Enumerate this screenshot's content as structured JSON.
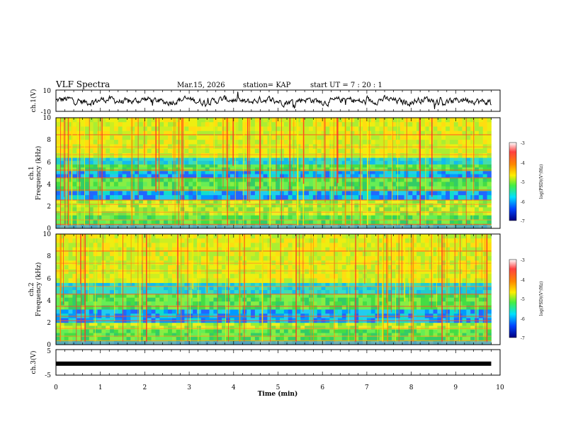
{
  "header": {
    "title": "VLF Spectra",
    "date": "Mar.15, 2026",
    "station": "station= KAP",
    "start": "start UT =  7 : 20 : 1"
  },
  "chart_data": [
    {
      "type": "line",
      "name": "ch1-waveform",
      "ylabel": "ch.1(V)",
      "ylim": [
        -10,
        10
      ],
      "ytick_labels": [
        "10",
        "-10"
      ],
      "xlim": [
        0,
        10
      ],
      "grid": false,
      "note": "noisy voltage trace oscillating roughly between -4 and +4 V over 0-9.8 min"
    },
    {
      "type": "heatmap",
      "name": "ch1-spectrogram",
      "ylabel_line1": "ch.1",
      "ylabel_line2": "Frequency (kHz)",
      "ylim": [
        0,
        10
      ],
      "ytick_labels": [
        "0",
        "2",
        "4",
        "6",
        "8",
        "10"
      ],
      "xlim": [
        0,
        10
      ],
      "data_end_min": 9.8,
      "colorbar": {
        "label": "log(PSD)(V²/Hz)",
        "range": [
          -7,
          -3
        ],
        "tick_labels": [
          "-3",
          "-4",
          "-5",
          "-6",
          "-7"
        ]
      },
      "frequency_bands_kHz": [
        {
          "from": 0,
          "to": 1.2,
          "level": "green"
        },
        {
          "from": 1.2,
          "to": 2.6,
          "level": "green-yellow"
        },
        {
          "from": 2.6,
          "to": 3.4,
          "level": "cyan-blue"
        },
        {
          "from": 3.4,
          "to": 4.6,
          "level": "green"
        },
        {
          "from": 4.6,
          "to": 5.2,
          "level": "cyan-blue"
        },
        {
          "from": 5.2,
          "to": 5.8,
          "level": "green"
        },
        {
          "from": 5.8,
          "to": 6.4,
          "level": "cyan"
        },
        {
          "from": 6.4,
          "to": 10,
          "level": "yellow-green"
        }
      ]
    },
    {
      "type": "heatmap",
      "name": "ch2-spectrogram",
      "ylabel_line1": "ch.2",
      "ylabel_line2": "Frequency (kHz)",
      "ylim": [
        0,
        10
      ],
      "ytick_labels": [
        "0",
        "2",
        "4",
        "6",
        "8",
        "10"
      ],
      "xlim": [
        0,
        10
      ],
      "data_end_min": 9.8,
      "colorbar": {
        "label": "log(PSD)(V²/Hz)",
        "range": [
          -7,
          -3
        ],
        "tick_labels": [
          "-3",
          "-4",
          "-5",
          "-6",
          "-7"
        ]
      },
      "frequency_bands_kHz": [
        {
          "from": 0,
          "to": 1.4,
          "level": "green"
        },
        {
          "from": 1.4,
          "to": 2.0,
          "level": "green-yellow"
        },
        {
          "from": 2.0,
          "to": 3.2,
          "level": "cyan-blue"
        },
        {
          "from": 3.2,
          "to": 4.6,
          "level": "green"
        },
        {
          "from": 4.6,
          "to": 5.6,
          "level": "cyan"
        },
        {
          "from": 5.6,
          "to": 10,
          "level": "yellow-green"
        }
      ]
    },
    {
      "type": "line",
      "name": "ch3-signal",
      "ylabel": "ch.3(V)",
      "ylim": [
        -5,
        5
      ],
      "ytick_labels": [
        "5",
        "-5"
      ],
      "xlim": [
        0,
        10
      ],
      "value_V": -0.5,
      "data_end_min": 9.8
    }
  ],
  "xaxis": {
    "label": "Time (min)",
    "range": [
      0,
      10
    ],
    "tick_labels": [
      "0",
      "1",
      "2",
      "3",
      "4",
      "5",
      "6",
      "7",
      "8",
      "9",
      "10"
    ]
  }
}
